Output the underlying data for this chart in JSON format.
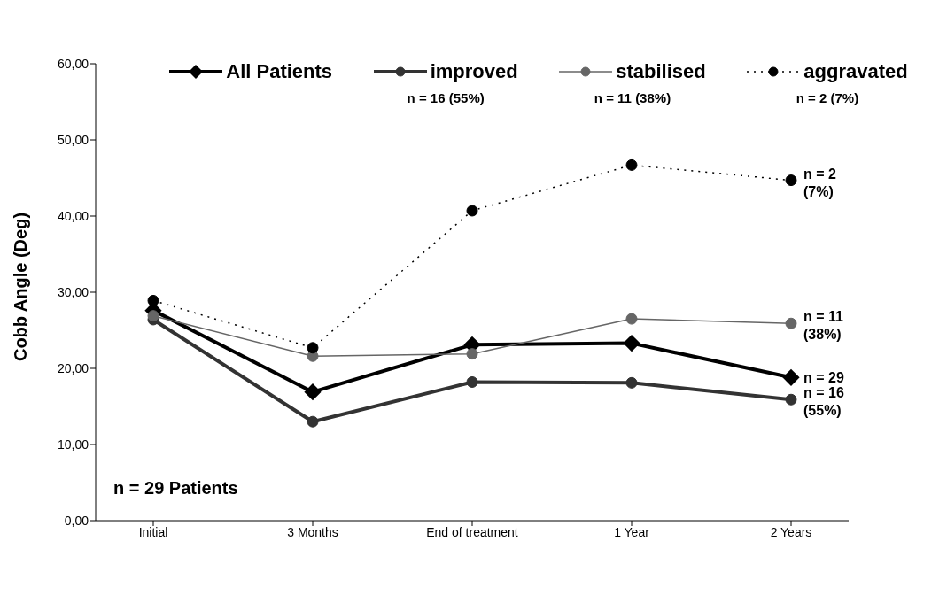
{
  "chart_data": {
    "type": "line",
    "ylabel": "Cobb Angle (Deg)",
    "categories": [
      "Initial",
      "3 Months",
      "End of treatment",
      "1 Year",
      "2 Years"
    ],
    "ylim": [
      0,
      60
    ],
    "yticks": [
      {
        "value": 0,
        "label": "0,00"
      },
      {
        "value": 10,
        "label": "10,00"
      },
      {
        "value": 20,
        "label": "20,00"
      },
      {
        "value": 30,
        "label": "30,00"
      },
      {
        "value": 40,
        "label": "40,00"
      },
      {
        "value": 50,
        "label": "50,00"
      },
      {
        "value": 60,
        "label": "60,00"
      }
    ],
    "grid": false,
    "legend": "top",
    "series": [
      {
        "name": "All Patients",
        "color": "#000000",
        "marker": "diamond",
        "line_style": "solid",
        "values": [
          27.6,
          16.9,
          23.1,
          23.3,
          18.8
        ]
      },
      {
        "name": "improved",
        "color": "#333333",
        "marker": "circle",
        "line_style": "solid",
        "values": [
          26.4,
          13.0,
          18.2,
          18.1,
          15.9
        ]
      },
      {
        "name": "stabilised",
        "color": "#666666",
        "marker": "circle",
        "line_style": "solid",
        "values": [
          26.9,
          21.6,
          21.9,
          26.5,
          25.9
        ]
      },
      {
        "name": "aggravated",
        "color": "#000000",
        "marker": "circle",
        "line_style": "dotted",
        "values": [
          28.9,
          22.7,
          40.7,
          46.7,
          44.7
        ]
      }
    ],
    "annotations": [
      "n = 16 (55%)",
      "n = 11 (38%)",
      "n = 2 (7%)",
      "n = 29 Patients",
      {
        "text": "n = 2 (7%)",
        "x": "2 Years",
        "y": 44.7
      },
      {
        "text": "n = 11 (38%)",
        "x": "2 Years",
        "y": 25.9
      },
      {
        "text": "n = 29",
        "x": "2 Years",
        "y": 18.8
      },
      {
        "text": "n = 16 (55%)",
        "x": "2 Years",
        "y": 15.9
      }
    ]
  }
}
